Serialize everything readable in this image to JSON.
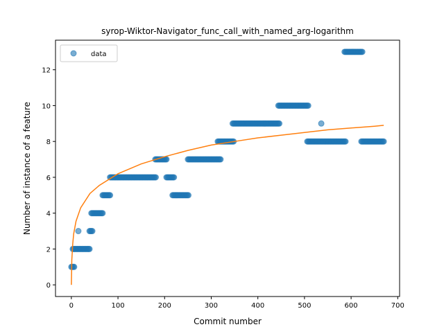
{
  "chart_data": {
    "type": "scatter",
    "title": "syrop-Wiktor-Navigator_func_call_with_named_arg-logarithm",
    "xlabel": "Commit number",
    "ylabel": "Number of instance of a feature",
    "xlim": [
      -34,
      704
    ],
    "ylim": [
      -0.65,
      13.65
    ],
    "xticks": [
      0,
      100,
      200,
      300,
      400,
      500,
      600,
      700
    ],
    "yticks": [
      0,
      2,
      4,
      6,
      8,
      10,
      12
    ],
    "legend": {
      "entries": [
        "data"
      ],
      "placement": "top-left"
    },
    "colors": {
      "points": "#1f77b4",
      "fit": "#ff7f0e"
    },
    "series": [
      {
        "name": "data",
        "kind": "points",
        "segments": [
          {
            "x_start": 0,
            "x_end": 6,
            "y": 1
          },
          {
            "x_start": 3,
            "x_end": 40,
            "y": 2
          },
          {
            "x_start": 15,
            "x_end": 15,
            "y": 3
          },
          {
            "x_start": 39,
            "x_end": 45,
            "y": 3
          },
          {
            "x_start": 43,
            "x_end": 68,
            "y": 4
          },
          {
            "x_start": 67,
            "x_end": 84,
            "y": 5
          },
          {
            "x_start": 83,
            "x_end": 182,
            "y": 6
          },
          {
            "x_start": 180,
            "x_end": 204,
            "y": 7
          },
          {
            "x_start": 204,
            "x_end": 221,
            "y": 6
          },
          {
            "x_start": 217,
            "x_end": 252,
            "y": 5
          },
          {
            "x_start": 250,
            "x_end": 320,
            "y": 7
          },
          {
            "x_start": 314,
            "x_end": 348,
            "y": 8
          },
          {
            "x_start": 346,
            "x_end": 446,
            "y": 9
          },
          {
            "x_start": 444,
            "x_end": 508,
            "y": 10
          },
          {
            "x_start": 506,
            "x_end": 588,
            "y": 8
          },
          {
            "x_start": 536,
            "x_end": 536,
            "y": 9
          },
          {
            "x_start": 586,
            "x_end": 624,
            "y": 13
          },
          {
            "x_start": 622,
            "x_end": 670,
            "y": 8
          }
        ]
      },
      {
        "kind": "fit",
        "model": "logarithm",
        "x_range": [
          0,
          670
        ],
        "points": [
          [
            0,
            0
          ],
          [
            1,
            1.4
          ],
          [
            3,
            2.3
          ],
          [
            5,
            2.85
          ],
          [
            10,
            3.55
          ],
          [
            20,
            4.3
          ],
          [
            40,
            5.1
          ],
          [
            60,
            5.55
          ],
          [
            100,
            6.2
          ],
          [
            150,
            6.75
          ],
          [
            200,
            7.15
          ],
          [
            250,
            7.5
          ],
          [
            300,
            7.8
          ],
          [
            350,
            8.0
          ],
          [
            400,
            8.2
          ],
          [
            450,
            8.35
          ],
          [
            500,
            8.5
          ],
          [
            550,
            8.65
          ],
          [
            600,
            8.75
          ],
          [
            650,
            8.85
          ],
          [
            670,
            8.9
          ]
        ]
      }
    ]
  }
}
